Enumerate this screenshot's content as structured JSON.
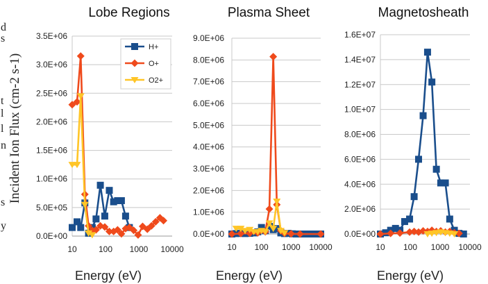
{
  "edge_text": [
    "d",
    "s",
    "t",
    "l",
    "l",
    "n",
    "s",
    "y"
  ],
  "y_axis_label": "Incident Ion Flux (cm-2 s-1)",
  "colors": {
    "H+": "#1a4e8c",
    "O+": "#ef4a1c",
    "O2+": "#ffc527"
  },
  "chart_data": [
    {
      "type": "line",
      "title": "Lobe Regions",
      "xlabel": "Energy (eV)",
      "x_scale": "log",
      "xlim": [
        10,
        10000
      ],
      "x_ticks": [
        "10",
        "100",
        "1000",
        "10000"
      ],
      "ylim": [
        0,
        3500000
      ],
      "y_ticks": [
        "0.0E+00",
        "5.0E+05",
        "1.0E+06",
        "1.5E+06",
        "2.0E+06",
        "2.5E+06",
        "3.0E+06",
        "3.5E+06"
      ],
      "legend": {
        "position": "top-right",
        "entries": [
          "H+",
          "O+",
          "O2+"
        ]
      },
      "series": [
        {
          "name": "H+",
          "marker": "square",
          "x": [
            10,
            14,
            18,
            24,
            31,
            40,
            52,
            70,
            95,
            130,
            175,
            230,
            300,
            400,
            520
          ],
          "y": [
            150000,
            250000,
            150000,
            580000,
            50000,
            150000,
            300000,
            890000,
            350000,
            800000,
            600000,
            620000,
            620000,
            350000,
            150000
          ]
        },
        {
          "name": "O+",
          "marker": "diamond",
          "x": [
            10,
            14,
            18,
            24,
            31,
            40,
            52,
            70,
            95,
            130,
            175,
            230,
            300,
            400,
            520,
            700,
            950,
            1300,
            1800,
            2400,
            3200,
            4300,
            5500
          ],
          "y": [
            2300000,
            2350000,
            3150000,
            730000,
            180000,
            100000,
            110000,
            180000,
            160000,
            80000,
            80000,
            110000,
            40000,
            130000,
            150000,
            100000,
            20000,
            170000,
            120000,
            180000,
            250000,
            320000,
            270000
          ]
        },
        {
          "name": "O2+",
          "marker": "triangle-down",
          "x": [
            10,
            14,
            18,
            24,
            31,
            40
          ],
          "y": [
            1250000,
            1250000,
            2450000,
            550000,
            50000,
            20000
          ]
        }
      ]
    },
    {
      "type": "line",
      "title": "Plasma Sheet",
      "xlabel": "Energy (eV)",
      "x_scale": "log",
      "xlim": [
        10,
        10000
      ],
      "x_ticks": [
        "10",
        "100",
        "1000",
        "10000"
      ],
      "ylim": [
        0,
        9000000
      ],
      "y_ticks": [
        "0.0E+00",
        "1.0E+06",
        "2.0E+06",
        "3.0E+06",
        "4.0E+06",
        "5.0E+06",
        "6.0E+06",
        "7.0E+06",
        "8.0E+06",
        "9.0E+06"
      ],
      "series": [
        {
          "name": "H+",
          "marker": "square",
          "x": [
            10,
            14,
            20,
            28,
            40,
            55,
            75,
            100,
            135,
            185,
            250,
            330,
            450,
            600,
            800,
            1100,
            1500,
            2000,
            2700,
            3700,
            5000,
            7000,
            10000
          ],
          "y": [
            0,
            20000,
            30000,
            20000,
            30000,
            50000,
            100000,
            300000,
            150000,
            350000,
            200000,
            250000,
            50000,
            20000,
            30000,
            10000,
            0,
            0,
            0,
            0,
            0,
            0,
            0
          ]
        },
        {
          "name": "O+",
          "marker": "diamond",
          "x": [
            10,
            20,
            40,
            75,
            135,
            185,
            250,
            330,
            450,
            600,
            1000,
            2000,
            10000
          ],
          "y": [
            0,
            20000,
            30000,
            50000,
            100000,
            1150000,
            8150000,
            1350000,
            150000,
            30000,
            10000,
            0,
            0
          ]
        },
        {
          "name": "O2+",
          "marker": "triangle-down",
          "x": [
            14,
            20,
            28,
            40,
            55,
            75,
            100,
            135,
            185,
            250,
            330,
            450,
            600
          ],
          "y": [
            250000,
            250000,
            150000,
            200000,
            100000,
            100000,
            150000,
            100000,
            500000,
            250000,
            1500000,
            150000,
            50000
          ]
        }
      ]
    },
    {
      "type": "line",
      "title": "Magnetosheath",
      "xlabel": "Energy (eV)",
      "x_scale": "log",
      "xlim": [
        10,
        10000
      ],
      "x_ticks": [
        "10",
        "100",
        "1000",
        "10000"
      ],
      "ylim": [
        0,
        16000000
      ],
      "y_ticks": [
        "0.0E+00",
        "2.0E+06",
        "4.0E+06",
        "6.0E+06",
        "8.0E+06",
        "1.0E+07",
        "1.2E+07",
        "1.4E+07",
        "1.6E+07"
      ],
      "series": [
        {
          "name": "H+",
          "marker": "square",
          "x": [
            10,
            15,
            22,
            32,
            45,
            65,
            95,
            135,
            190,
            270,
            380,
            530,
            750,
            1050,
            1500,
            2100,
            3000,
            4300,
            6100
          ],
          "y": [
            0,
            100000,
            300000,
            450000,
            300000,
            1000000,
            1200000,
            3000000,
            6000000,
            9500000,
            14600000,
            12200000,
            5200000,
            4100000,
            4100000,
            1200000,
            300000,
            50000,
            0
          ]
        },
        {
          "name": "O+",
          "marker": "diamond",
          "x": [
            10,
            22,
            45,
            95,
            135,
            190,
            270,
            380,
            530,
            750,
            1050,
            1500,
            2100,
            3000,
            4300
          ],
          "y": [
            0,
            50000,
            80000,
            150000,
            200000,
            150000,
            250000,
            200000,
            300000,
            200000,
            250000,
            150000,
            200000,
            100000,
            50000
          ]
        },
        {
          "name": "O2+",
          "marker": "triangle-down",
          "x": [
            380,
            530,
            750,
            1050,
            1500,
            2100,
            3000
          ],
          "y": [
            0,
            50000,
            100000,
            150000,
            100000,
            50000,
            0
          ]
        }
      ]
    }
  ]
}
